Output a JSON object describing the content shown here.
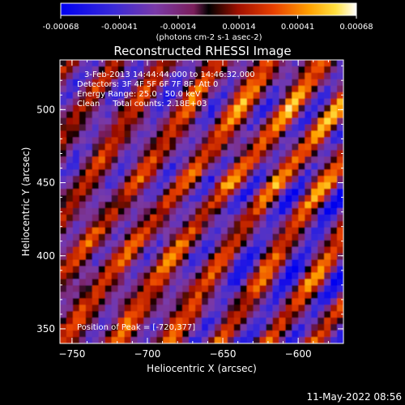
{
  "chart_data": {
    "type": "heatmap",
    "title": "Reconstructed RHESSI Image",
    "xlabel": "Heliocentric X (arcsec)",
    "ylabel": "Heliocentric Y (arcsec)",
    "xlim": [
      -758,
      -570
    ],
    "ylim": [
      340,
      534
    ],
    "x_ticks": [
      -750,
      -700,
      -650,
      -600
    ],
    "y_ticks": [
      350,
      400,
      450,
      500
    ],
    "colorbar": {
      "range": [
        -0.00068,
        0.00068
      ],
      "ticks": [
        -0.00068,
        -0.00041,
        -0.00014,
        0.00014,
        0.00041,
        0.00068
      ],
      "tick_labels": [
        "-0.00068",
        "-0.00041",
        "-0.00014",
        "0.00014",
        "0.00041",
        "0.00068"
      ],
      "unit_label": "(photons cm-2 s-1 asec-2)"
    },
    "annotations": [
      "3-Feb-2013 14:44:44.000 to 14:46:32.000",
      "Detectors: 3F 4F 5F 6F 7F 8F, Att 0",
      "Energy Range: 25.0 - 50.0 keV",
      "Clean     Total counts: 2.18E+03"
    ],
    "peak_label": "Position of Peak = [-720,377]",
    "peak": [
      -720,
      377
    ]
  },
  "footer_timestamp": "11-May-2022 08:56"
}
